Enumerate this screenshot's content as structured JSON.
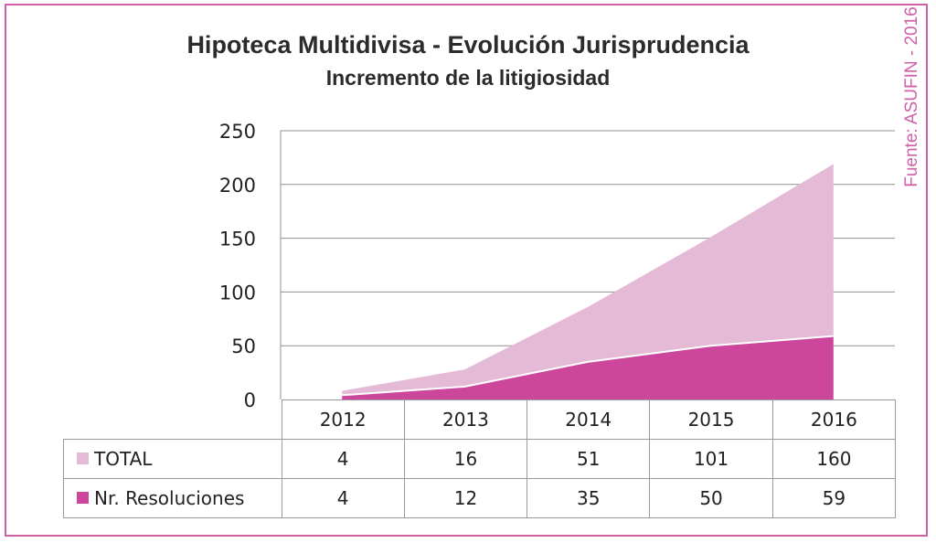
{
  "chart_data": {
    "type": "area",
    "title": "Hipoteca Multidivisa - Evolución Jurisprudencia",
    "subtitle": "Incremento de la litigiosidad",
    "source": "Fuente: ASUFIN - 2016",
    "categories": [
      "2012",
      "2013",
      "2014",
      "2015",
      "2016"
    ],
    "series": [
      {
        "name": "TOTAL",
        "values": [
          4,
          16,
          51,
          101,
          160
        ],
        "color": "#e4bad6"
      },
      {
        "name": "Nr. Resoluciones",
        "values": [
          4,
          12,
          35,
          50,
          59
        ],
        "color": "#cc479c"
      }
    ],
    "stacked": true,
    "ylim": [
      0,
      250
    ],
    "yticks": [
      "0",
      "50",
      "100",
      "150",
      "200",
      "250"
    ],
    "grid": true,
    "legend": "data-table"
  }
}
